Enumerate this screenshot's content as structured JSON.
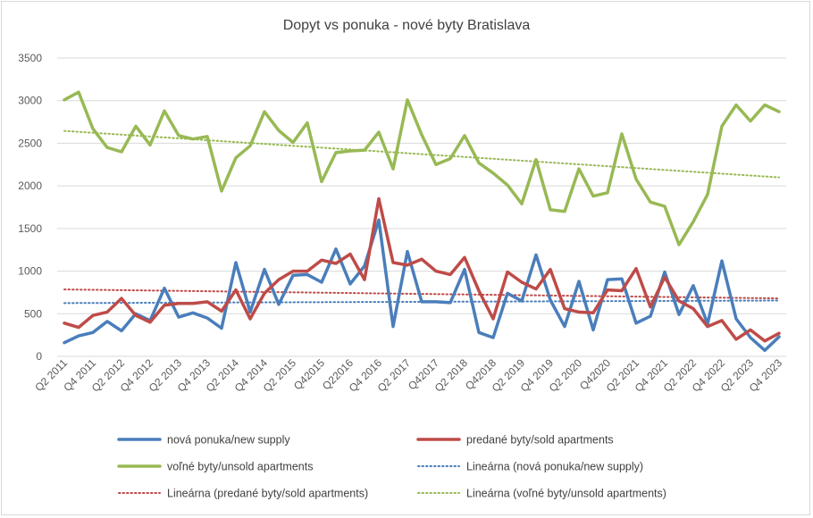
{
  "chart_data": {
    "type": "line",
    "title": "Dopyt vs ponuka - nové byty Bratislava",
    "ylim": [
      0,
      3500
    ],
    "y_ticks": [
      0,
      500,
      1000,
      1500,
      2000,
      2500,
      3000,
      3500
    ],
    "x_tick_labels": [
      "Q2 2011",
      "Q4 2011",
      "Q2 2012",
      "Q4 2012",
      "Q2 2013",
      "Q4 2013",
      "Q2 2014",
      "Q4 2014",
      "Q2 2015",
      "Q42015",
      "Q22016",
      "Q4 2016",
      "Q2 2017",
      "Q42017",
      "Q2 2018",
      "Q42018",
      "Q2 2019",
      "Q4 2019",
      "Q2 2020",
      "Q42020",
      "Q2 2021",
      "Q4 2021",
      "Q2 2022",
      "Q4 2022",
      "Q2 2023",
      "Q4 2023"
    ],
    "grid": true,
    "legend_position": "bottom",
    "series": [
      {
        "name": "nová ponuka/new supply",
        "color": "#4a7ebb",
        "values": [
          160,
          240,
          280,
          410,
          300,
          500,
          420,
          800,
          460,
          510,
          450,
          330,
          1100,
          520,
          1020,
          610,
          950,
          960,
          870,
          1260,
          850,
          1060,
          1600,
          350,
          1230,
          640,
          640,
          630,
          1020,
          280,
          220,
          740,
          650,
          1190,
          660,
          350,
          880,
          310,
          900,
          910,
          390,
          470,
          990,
          490,
          830,
          380,
          1120,
          440,
          220,
          70,
          230
        ]
      },
      {
        "name": "predané byty/sold apartments",
        "color": "#be4b48",
        "values": [
          390,
          340,
          480,
          520,
          680,
          480,
          400,
          600,
          620,
          620,
          640,
          530,
          780,
          440,
          740,
          900,
          1000,
          1000,
          1130,
          1090,
          1200,
          900,
          1850,
          1100,
          1070,
          1140,
          1000,
          960,
          1160,
          770,
          440,
          990,
          870,
          790,
          1020,
          560,
          520,
          510,
          780,
          770,
          1030,
          580,
          930,
          650,
          560,
          350,
          420,
          200,
          310,
          180,
          270
        ]
      },
      {
        "name": "voľné byty/unsold apartments",
        "color": "#98b954",
        "values": [
          3010,
          3100,
          2670,
          2450,
          2400,
          2700,
          2480,
          2880,
          2590,
          2550,
          2580,
          1940,
          2330,
          2470,
          2870,
          2650,
          2510,
          2740,
          2050,
          2390,
          2410,
          2420,
          2630,
          2200,
          3010,
          2600,
          2250,
          2320,
          2590,
          2270,
          2150,
          2010,
          1790,
          2310,
          1720,
          1700,
          2200,
          1880,
          1920,
          2610,
          2080,
          1810,
          1760,
          1310,
          1580,
          1900,
          2700,
          2950,
          2760,
          2950,
          2870
        ]
      },
      {
        "name": "Lineárna (nová ponuka/new supply)",
        "color": "#4a7ebb",
        "style": "dotted",
        "values": [
          625,
          655
        ]
      },
      {
        "name": "Lineárna (predané byty/sold apartments)",
        "color": "#be4b48",
        "style": "dotted",
        "values": [
          785,
          680
        ]
      },
      {
        "name": "Lineárna (voľné byty/unsold apartments)",
        "color": "#98b954",
        "style": "dotted",
        "values": [
          2645,
          2100
        ]
      }
    ]
  }
}
